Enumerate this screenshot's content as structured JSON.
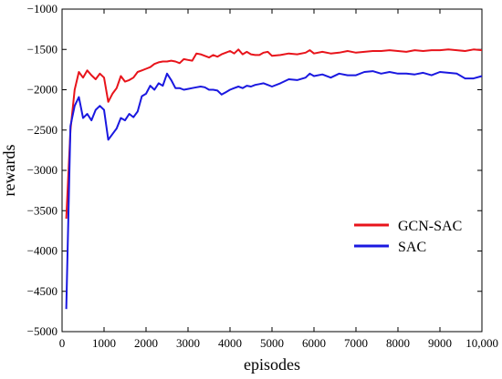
{
  "chart_data": {
    "type": "line",
    "title": "",
    "xlabel": "episodes",
    "ylabel": "rewards",
    "xlim": [
      0,
      10000
    ],
    "ylim": [
      -5000,
      -1000
    ],
    "x_ticks": [
      0,
      1000,
      2000,
      3000,
      4000,
      5000,
      6000,
      7000,
      8000,
      9000,
      10000
    ],
    "x_tick_labels": [
      "0",
      "1000",
      "2000",
      "3000",
      "4000",
      "5000",
      "6000",
      "7000",
      "8000",
      "9000",
      "10,000"
    ],
    "y_ticks": [
      -5000,
      -4500,
      -4000,
      -3500,
      -3000,
      -2500,
      -2000,
      -1500,
      -1000
    ],
    "y_tick_labels": [
      "−5000",
      "−4500",
      "−4000",
      "−3500",
      "−3000",
      "−2500",
      "−2000",
      "−1500",
      "−1000"
    ],
    "grid": false,
    "legend_position": "center-right",
    "series": [
      {
        "name": "GCN-SAC",
        "color": "#e8141b",
        "x": [
          100,
          200,
          300,
          400,
          500,
          600,
          700,
          800,
          900,
          1000,
          1100,
          1200,
          1300,
          1400,
          1500,
          1600,
          1700,
          1800,
          1900,
          2000,
          2100,
          2200,
          2300,
          2400,
          2500,
          2600,
          2700,
          2800,
          2900,
          3000,
          3100,
          3200,
          3300,
          3400,
          3500,
          3600,
          3700,
          3800,
          3900,
          4000,
          4100,
          4200,
          4300,
          4400,
          4500,
          4600,
          4700,
          4800,
          4900,
          5000,
          5200,
          5400,
          5600,
          5800,
          5900,
          6000,
          6200,
          6400,
          6600,
          6800,
          7000,
          7200,
          7400,
          7600,
          7800,
          8000,
          8200,
          8400,
          8600,
          8800,
          9000,
          9200,
          9400,
          9600,
          9800,
          10000
        ],
        "values": [
          -3600,
          -2500,
          -2000,
          -1780,
          -1850,
          -1760,
          -1820,
          -1870,
          -1800,
          -1850,
          -2150,
          -2050,
          -1980,
          -1830,
          -1900,
          -1880,
          -1850,
          -1780,
          -1760,
          -1740,
          -1720,
          -1680,
          -1660,
          -1650,
          -1650,
          -1640,
          -1650,
          -1670,
          -1620,
          -1630,
          -1640,
          -1550,
          -1560,
          -1580,
          -1600,
          -1570,
          -1590,
          -1560,
          -1540,
          -1520,
          -1550,
          -1500,
          -1560,
          -1530,
          -1560,
          -1570,
          -1570,
          -1540,
          -1530,
          -1580,
          -1570,
          -1550,
          -1560,
          -1540,
          -1510,
          -1550,
          -1530,
          -1550,
          -1540,
          -1520,
          -1540,
          -1530,
          -1520,
          -1520,
          -1510,
          -1520,
          -1530,
          -1510,
          -1520,
          -1510,
          -1510,
          -1500,
          -1510,
          -1520,
          -1500,
          -1510
        ]
      },
      {
        "name": "SAC",
        "color": "#1a18e0",
        "x": [
          100,
          200,
          300,
          400,
          500,
          600,
          700,
          800,
          900,
          1000,
          1100,
          1200,
          1300,
          1400,
          1500,
          1600,
          1700,
          1800,
          1900,
          2000,
          2100,
          2200,
          2300,
          2400,
          2500,
          2600,
          2700,
          2800,
          2900,
          3000,
          3100,
          3200,
          3300,
          3400,
          3500,
          3600,
          3700,
          3800,
          3900,
          4000,
          4100,
          4200,
          4300,
          4400,
          4500,
          4600,
          4700,
          4800,
          4900,
          5000,
          5200,
          5400,
          5600,
          5800,
          5900,
          6000,
          6200,
          6400,
          6600,
          6800,
          7000,
          7200,
          7400,
          7600,
          7800,
          8000,
          8200,
          8400,
          8600,
          8800,
          9000,
          9200,
          9400,
          9600,
          9800,
          10000
        ],
        "values": [
          -4720,
          -2450,
          -2200,
          -2090,
          -2350,
          -2300,
          -2380,
          -2250,
          -2200,
          -2250,
          -2620,
          -2550,
          -2480,
          -2350,
          -2380,
          -2300,
          -2340,
          -2270,
          -2080,
          -2050,
          -1950,
          -2000,
          -1920,
          -1950,
          -1800,
          -1880,
          -1980,
          -1980,
          -2000,
          -1990,
          -1980,
          -1970,
          -1960,
          -1970,
          -2000,
          -2000,
          -2010,
          -2060,
          -2030,
          -2000,
          -1980,
          -1960,
          -1980,
          -1950,
          -1960,
          -1940,
          -1930,
          -1920,
          -1940,
          -1960,
          -1920,
          -1870,
          -1880,
          -1850,
          -1800,
          -1830,
          -1810,
          -1850,
          -1800,
          -1820,
          -1820,
          -1780,
          -1770,
          -1800,
          -1780,
          -1800,
          -1800,
          -1810,
          -1790,
          -1820,
          -1780,
          -1790,
          -1800,
          -1860,
          -1860,
          -1830
        ]
      }
    ]
  }
}
